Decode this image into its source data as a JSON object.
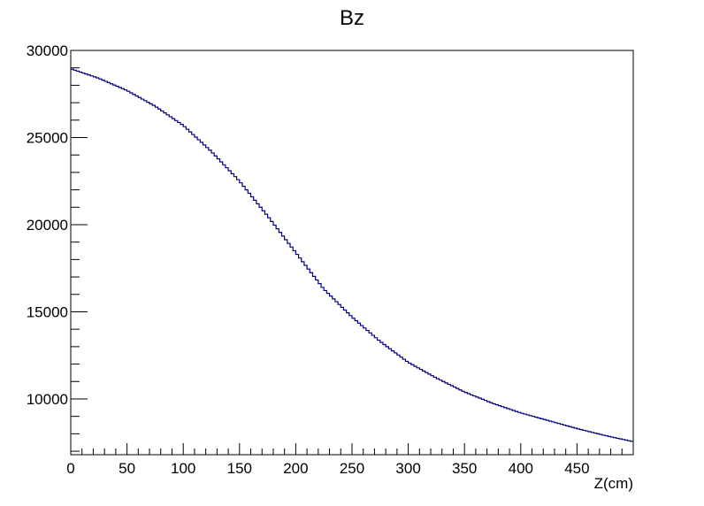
{
  "chart_data": {
    "type": "line",
    "title": "Bz",
    "xlabel": "Z(cm)",
    "ylabel": "",
    "xlim": [
      0,
      500
    ],
    "ylim": [
      6800,
      30000
    ],
    "x_ticks": [
      0,
      50,
      100,
      150,
      200,
      250,
      300,
      350,
      400,
      450
    ],
    "y_ticks": [
      10000,
      15000,
      20000,
      25000,
      30000
    ],
    "grid": false,
    "colors": {
      "line": "#000080",
      "frame": "#000000",
      "background": "#ffffff"
    },
    "series": [
      {
        "x": [
          0,
          25,
          50,
          75,
          100,
          125,
          150,
          175,
          200,
          225,
          250,
          275,
          300,
          325,
          350,
          375,
          400,
          425,
          450,
          475,
          500
        ],
        "y": [
          28950,
          28400,
          27700,
          26800,
          25700,
          24200,
          22500,
          20500,
          18400,
          16300,
          14700,
          13300,
          12100,
          11200,
          10400,
          9750,
          9200,
          8750,
          8300,
          7900,
          7550
        ]
      }
    ]
  }
}
